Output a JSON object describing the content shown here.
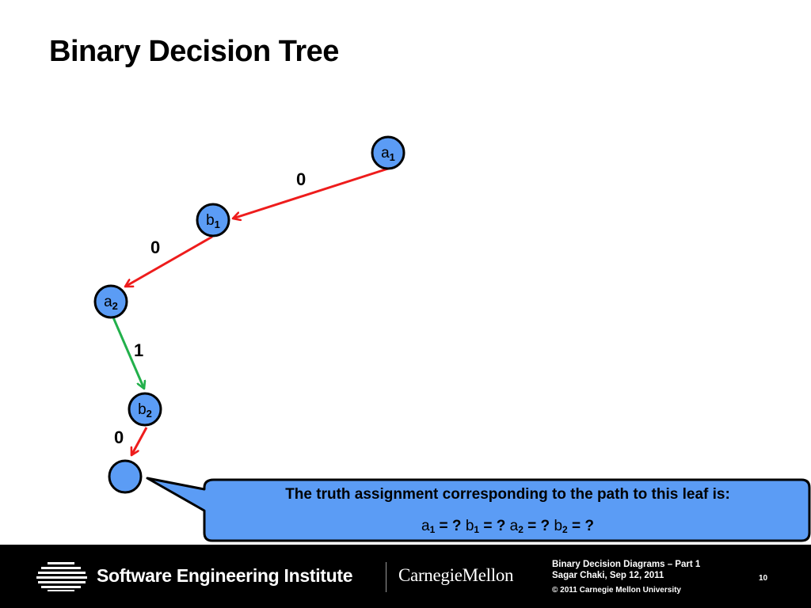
{
  "slide": {
    "title": "Binary Decision Tree"
  },
  "diagram": {
    "nodes": [
      {
        "id": "a1",
        "var": "a",
        "sub": "1"
      },
      {
        "id": "b1",
        "var": "b",
        "sub": "1"
      },
      {
        "id": "a2",
        "var": "a",
        "sub": "2"
      },
      {
        "id": "b2",
        "var": "b",
        "sub": "2"
      },
      {
        "id": "leaf",
        "var": "",
        "sub": ""
      }
    ],
    "edges": [
      {
        "from": "a1",
        "to": "b1",
        "label": "0",
        "color": "#ee1c1c"
      },
      {
        "from": "b1",
        "to": "a2",
        "label": "0",
        "color": "#ee1c1c"
      },
      {
        "from": "a2",
        "to": "b2",
        "label": "1",
        "color": "#22b04b"
      },
      {
        "from": "b2",
        "to": "leaf",
        "label": "0",
        "color": "#ee1c1c"
      }
    ],
    "node_fill": "#5b9cf5"
  },
  "callout": {
    "line1": "The truth assignment corresponding to the path to this leaf is:",
    "line2": [
      {
        "var": "a",
        "sub": "1",
        "rest": " = ? "
      },
      {
        "var": "b",
        "sub": "1",
        "rest": " = ? "
      },
      {
        "var": "a",
        "sub": "2",
        "rest": " = ? "
      },
      {
        "var": "b",
        "sub": "2",
        "rest": " = ?"
      }
    ]
  },
  "footer": {
    "org": "Software Engineering Institute",
    "university": "CarnegieMellon",
    "deck_title": "Binary Decision Diagrams – Part 1",
    "author_date": "Sagar Chaki, Sep 12, 2011",
    "copyright": "© 2011 Carnegie Mellon University",
    "page": "10"
  }
}
